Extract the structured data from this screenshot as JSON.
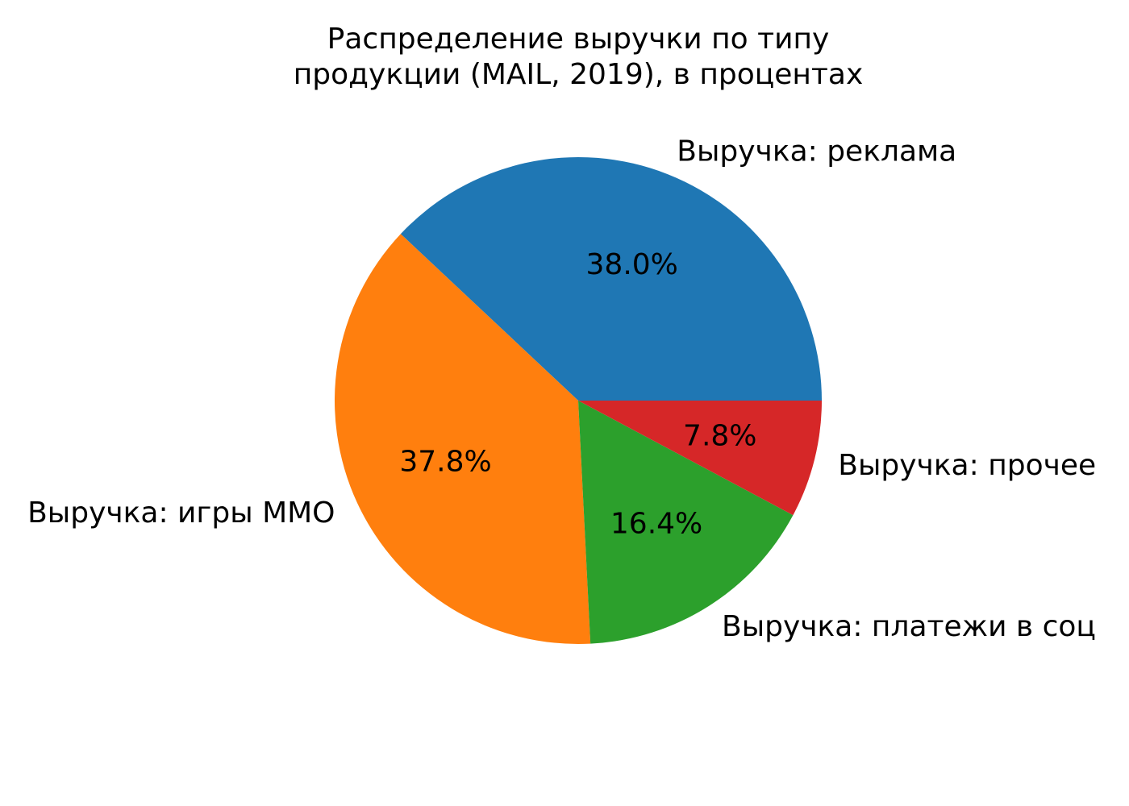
{
  "chart_data": {
    "type": "pie",
    "title": [
      "Распределение выручки по типу",
      "продукции (MAIL, 2019), в процентах"
    ],
    "slices": [
      {
        "label": "Выручка: реклама",
        "value": 38.0,
        "pct_label": "38.0%",
        "color": "#1f77b4"
      },
      {
        "label": "Выручка: игры MMO",
        "value": 37.8,
        "pct_label": "37.8%",
        "color": "#ff7f0e"
      },
      {
        "label": "Выручка: платежи в соц",
        "value": 16.4,
        "pct_label": "16.4%",
        "color": "#2ca02c"
      },
      {
        "label": "Выручка: прочее",
        "value": 7.8,
        "pct_label": "7.8%",
        "color": "#d62728"
      }
    ],
    "start_angle_deg": 0,
    "direction": "counterclockwise"
  }
}
